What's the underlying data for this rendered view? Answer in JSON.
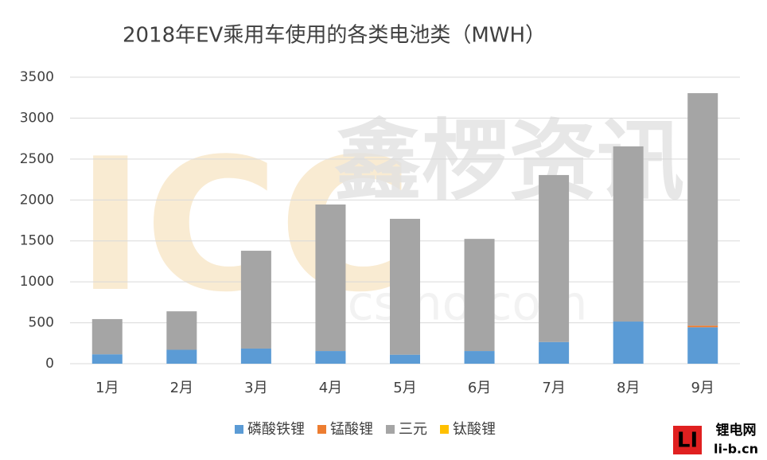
{
  "chart_data": {
    "type": "stacked_bar",
    "title": "2018年EV乘用车使用的各类电池类（MWH）",
    "categories": [
      "1月",
      "2月",
      "3月",
      "4月",
      "5月",
      "6月",
      "7月",
      "8月",
      "9月"
    ],
    "series": [
      {
        "name": "磷酸铁锂",
        "color": "#5b9bd5",
        "values": [
          115,
          170,
          185,
          155,
          110,
          155,
          265,
          515,
          445
        ]
      },
      {
        "name": "锰酸锂",
        "color": "#ed7d31",
        "values": [
          0,
          0,
          0,
          0,
          0,
          0,
          0,
          0,
          20
        ]
      },
      {
        "name": "三元",
        "color": "#a5a5a5",
        "values": [
          430,
          470,
          1195,
          1790,
          1660,
          1370,
          2040,
          2140,
          2840
        ]
      },
      {
        "name": "钛酸锂",
        "color": "#ffc000",
        "values": [
          0,
          0,
          0,
          0,
          0,
          0,
          0,
          0,
          0
        ]
      }
    ],
    "ylim": [
      0,
      3500
    ],
    "yticks": [
      0,
      500,
      1000,
      1500,
      2000,
      2500,
      3000,
      3500
    ],
    "grid": true,
    "legend": "bottom"
  },
  "watermark": [
    "ICC",
    "鑫椤资讯",
    "icsino.com"
  ],
  "logo": {
    "mark": "LI",
    "name": "锂电网",
    "url": "li-b.cn"
  }
}
